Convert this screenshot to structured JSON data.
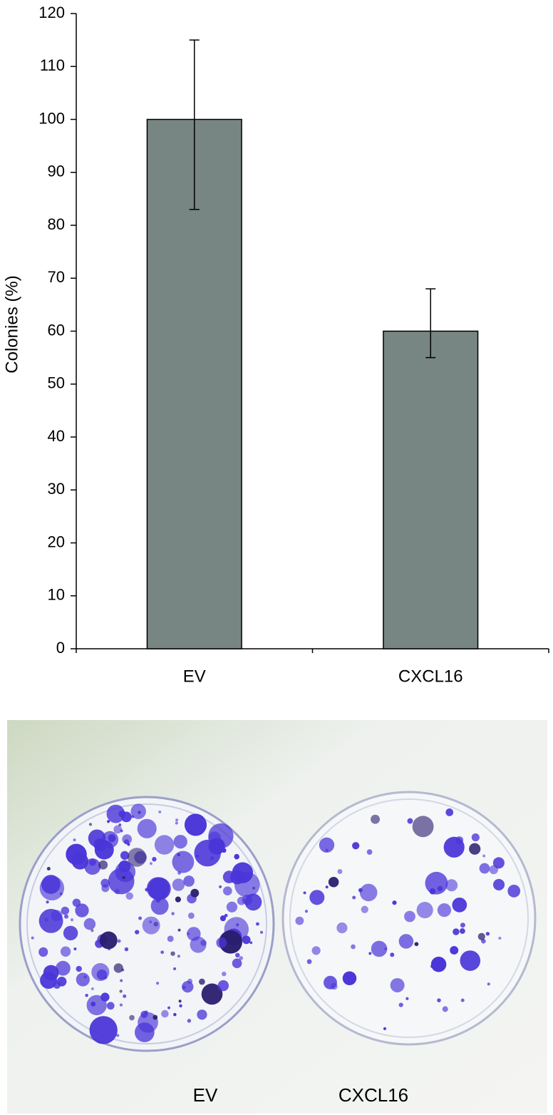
{
  "chart_data": {
    "type": "bar",
    "y_label": "Colonies (%)",
    "categories": [
      "EV",
      "CXCL16"
    ],
    "values": [
      100,
      60
    ],
    "error_low": [
      17,
      5
    ],
    "error_high": [
      15,
      8
    ],
    "color": "#778583",
    "ylim": [
      0,
      120
    ],
    "yticks": [
      0,
      10,
      20,
      30,
      40,
      50,
      60,
      70,
      80,
      90,
      100,
      110,
      120
    ],
    "grid": false
  },
  "photo": {
    "labels": [
      "EV",
      "CXCL16"
    ]
  }
}
